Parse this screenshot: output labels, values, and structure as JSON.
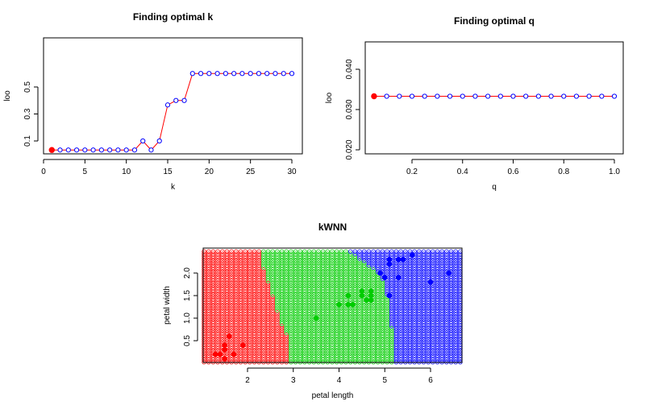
{
  "chart_data": [
    {
      "type": "line",
      "title": "Finding optimal k",
      "xlabel": "k",
      "ylabel": "loo",
      "xlim": [
        0,
        30
      ],
      "ylim": [
        0,
        0.6
      ],
      "x_ticks": [
        0,
        5,
        10,
        15,
        20,
        25,
        30
      ],
      "y_ticks": [
        0.1,
        0.3,
        0.5
      ],
      "grid": false,
      "x": [
        1,
        2,
        3,
        4,
        5,
        6,
        7,
        8,
        9,
        10,
        11,
        12,
        13,
        14,
        15,
        16,
        17,
        18,
        19,
        20,
        21,
        22,
        23,
        24,
        25,
        26,
        27,
        28,
        29,
        30
      ],
      "y": [
        0.033,
        0.033,
        0.033,
        0.033,
        0.033,
        0.033,
        0.033,
        0.033,
        0.033,
        0.033,
        0.033,
        0.1,
        0.033,
        0.1,
        0.367,
        0.4,
        0.4,
        0.6,
        0.6,
        0.6,
        0.6,
        0.6,
        0.6,
        0.6,
        0.6,
        0.6,
        0.6,
        0.6,
        0.6,
        0.6
      ],
      "optimum": {
        "x": 1,
        "y": 0.033
      },
      "line_color": "#ff0000",
      "point_color": "#0000ff",
      "optimum_color": "#ff0000"
    },
    {
      "type": "line",
      "title": "Finding optimal q",
      "xlabel": "q",
      "ylabel": "loo",
      "xlim": [
        0.05,
        1.0
      ],
      "ylim": [
        0.02,
        0.046
      ],
      "x_ticks": [
        0.2,
        0.4,
        0.6,
        0.8,
        1.0
      ],
      "x_tick_labels": [
        "0.2",
        "0.4",
        "0.6",
        "0.8",
        "1.0"
      ],
      "y_ticks": [
        0.02,
        0.03,
        0.04
      ],
      "y_tick_labels": [
        "0.020",
        "0.030",
        "0.040"
      ],
      "grid": false,
      "x": [
        0.05,
        0.1,
        0.15,
        0.2,
        0.25,
        0.3,
        0.35,
        0.4,
        0.45,
        0.5,
        0.55,
        0.6,
        0.65,
        0.7,
        0.75,
        0.8,
        0.85,
        0.9,
        0.95,
        1.0
      ],
      "y": [
        0.0333,
        0.0333,
        0.0333,
        0.0333,
        0.0333,
        0.0333,
        0.0333,
        0.0333,
        0.0333,
        0.0333,
        0.0333,
        0.0333,
        0.0333,
        0.0333,
        0.0333,
        0.0333,
        0.0333,
        0.0333,
        0.0333,
        0.0333
      ],
      "optimum": {
        "x": 0.05,
        "y": 0.0333
      },
      "line_color": "#ff0000",
      "point_color": "#0000ff",
      "optimum_color": "#ff0000"
    },
    {
      "type": "scatter",
      "title": "kWNN",
      "xlabel": "petal length",
      "ylabel": "petal width",
      "xlim": [
        1.0,
        6.7
      ],
      "ylim": [
        0.0,
        2.5
      ],
      "x_ticks": [
        2,
        3,
        4,
        5,
        6
      ],
      "y_ticks": [
        0.5,
        1.0,
        1.5,
        2.0
      ],
      "y_tick_labels": [
        "0.5",
        "1.0",
        "1.5",
        "2.0"
      ],
      "grid": false,
      "class_colors": {
        "setosa": "#ff0000",
        "versicolor": "#00cc00",
        "virginica": "#0000ff"
      },
      "boundaries": {
        "red_green": [
          [
            0.0,
            2.95
          ],
          [
            0.45,
            2.95
          ],
          [
            0.75,
            2.8
          ],
          [
            1.0,
            2.7
          ],
          [
            1.5,
            2.55
          ],
          [
            2.1,
            2.35
          ],
          [
            2.5,
            2.25
          ]
        ],
        "green_blue": [
          [
            0.0,
            5.25
          ],
          [
            0.4,
            5.2
          ],
          [
            0.8,
            5.15
          ],
          [
            1.2,
            5.1
          ],
          [
            1.5,
            5.05
          ],
          [
            1.8,
            5.0
          ],
          [
            2.0,
            4.85
          ],
          [
            2.2,
            4.6
          ],
          [
            2.5,
            4.2
          ]
        ]
      },
      "points": [
        {
          "x": 1.3,
          "y": 0.2,
          "class": "setosa"
        },
        {
          "x": 1.4,
          "y": 0.2,
          "class": "setosa"
        },
        {
          "x": 1.5,
          "y": 0.1,
          "class": "setosa"
        },
        {
          "x": 1.5,
          "y": 0.3,
          "class": "setosa"
        },
        {
          "x": 1.5,
          "y": 0.4,
          "class": "setosa"
        },
        {
          "x": 1.6,
          "y": 0.6,
          "class": "setosa"
        },
        {
          "x": 1.7,
          "y": 0.2,
          "class": "setosa"
        },
        {
          "x": 1.9,
          "y": 0.4,
          "class": "setosa"
        },
        {
          "x": 3.5,
          "y": 1.0,
          "class": "versicolor"
        },
        {
          "x": 4.0,
          "y": 1.3,
          "class": "versicolor"
        },
        {
          "x": 4.2,
          "y": 1.3,
          "class": "versicolor"
        },
        {
          "x": 4.3,
          "y": 1.3,
          "class": "versicolor"
        },
        {
          "x": 4.2,
          "y": 1.5,
          "class": "versicolor"
        },
        {
          "x": 4.5,
          "y": 1.5,
          "class": "versicolor"
        },
        {
          "x": 4.5,
          "y": 1.6,
          "class": "versicolor"
        },
        {
          "x": 4.6,
          "y": 1.4,
          "class": "versicolor"
        },
        {
          "x": 4.7,
          "y": 1.4,
          "class": "versicolor"
        },
        {
          "x": 4.7,
          "y": 1.5,
          "class": "versicolor"
        },
        {
          "x": 4.7,
          "y": 1.6,
          "class": "versicolor"
        },
        {
          "x": 4.9,
          "y": 2.0,
          "class": "virginica"
        },
        {
          "x": 5.0,
          "y": 1.9,
          "class": "virginica"
        },
        {
          "x": 5.1,
          "y": 1.5,
          "class": "virginica"
        },
        {
          "x": 5.1,
          "y": 2.2,
          "class": "virginica"
        },
        {
          "x": 5.1,
          "y": 2.3,
          "class": "virginica"
        },
        {
          "x": 5.3,
          "y": 1.9,
          "class": "virginica"
        },
        {
          "x": 5.3,
          "y": 2.3,
          "class": "virginica"
        },
        {
          "x": 5.4,
          "y": 2.3,
          "class": "virginica"
        },
        {
          "x": 5.6,
          "y": 2.4,
          "class": "virginica"
        },
        {
          "x": 6.0,
          "y": 1.8,
          "class": "virginica"
        },
        {
          "x": 6.4,
          "y": 2.0,
          "class": "virginica"
        }
      ]
    }
  ]
}
